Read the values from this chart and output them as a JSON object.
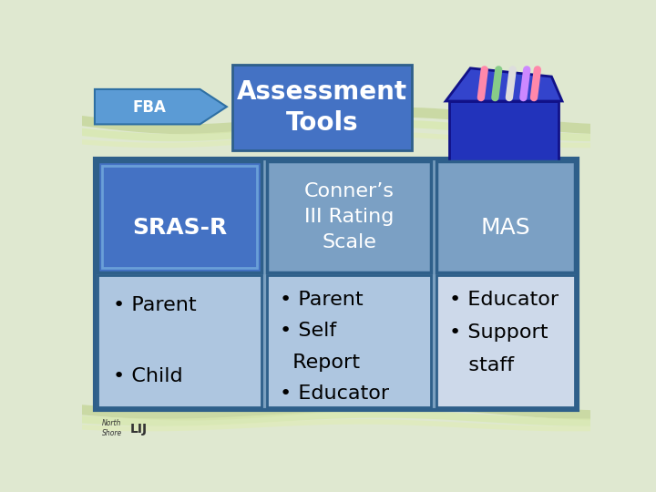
{
  "bg_color": "#dfe8d0",
  "title_box_color": "#4472c4",
  "title_text": "Assessment\nTools",
  "title_text_color": "#ffffff",
  "arrow_color": "#5b9bd5",
  "arrow_edge_color": "#2e6fa3",
  "fba_text": "FBA",
  "fba_text_color": "#ffffff",
  "main_border_color": "#2e5f8a",
  "main_bg_color": "#7ba0c0",
  "col1_header_color": "#4472c4",
  "col1_header_text": "SRAS-R",
  "col1_header_text_color": "#ffffff",
  "col1_body_color": "#aec6e0",
  "col1_body_text": "• Parent\n\n• Child",
  "col2_header_color": "#7ba0c4",
  "col2_header_text": "Conner’s\nIII Rating\nScale",
  "col2_header_text_color": "#ffffff",
  "col2_body_color": "#aec6e0",
  "col2_body_text": "• Parent\n• Self\n  Report\n• Educator",
  "col3_header_color": "#7ba0c4",
  "col3_header_text": "MAS",
  "col3_header_text_color": "#ffffff",
  "col3_body_color": "#cdd9ea",
  "col3_body_text": "• Educator\n• Support\n   staff",
  "body_text_color": "#000000",
  "font_size_title": 20,
  "font_size_header": 15,
  "font_size_body": 13,
  "font_size_fba": 12,
  "wave_color1": "#c8d8a0",
  "wave_color2": "#d8e8b0",
  "wave_color3": "#e0ecb8"
}
